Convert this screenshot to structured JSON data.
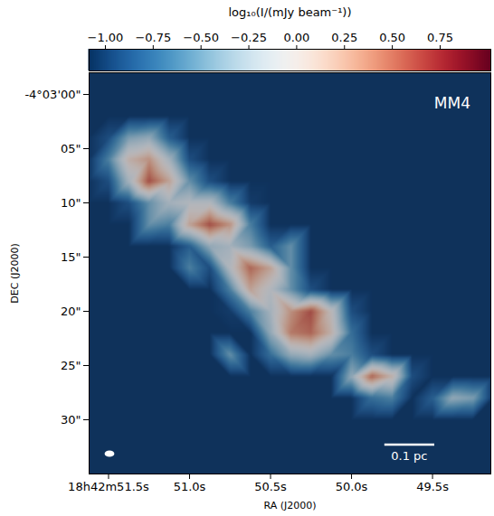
{
  "chart_data": {
    "type": "heatmap",
    "annotations": [
      "MM4"
    ],
    "xlabel": "RA (J2000)",
    "ylabel": "DEC (J2000)",
    "xlim": [
      51.62,
      49.14
    ],
    "ylim": [
      -2,
      35
    ],
    "xticks": [
      {
        "value": 51.5,
        "label": "18h42m51.5s"
      },
      {
        "value": 51.0,
        "label": "51.0s"
      },
      {
        "value": 50.5,
        "label": "50.5s"
      },
      {
        "value": 50.0,
        "label": "50.0s"
      },
      {
        "value": 49.5,
        "label": "49.5s"
      }
    ],
    "yticks": [
      {
        "value": 0,
        "label": "-4°03'00\""
      },
      {
        "value": 5,
        "label": "05\""
      },
      {
        "value": 10,
        "label": "10\""
      },
      {
        "value": 15,
        "label": "15\""
      },
      {
        "value": 20,
        "label": "20\""
      },
      {
        "value": 25,
        "label": "25\""
      },
      {
        "value": 30,
        "label": "30\""
      }
    ],
    "colorbar": {
      "label": "log₁₀(I/(mJy beam⁻¹))",
      "range": [
        -1.085,
        1.015
      ],
      "ticks": [
        {
          "value": -1,
          "label": "−1.00"
        },
        {
          "value": -0.75,
          "label": "−0.75"
        },
        {
          "value": -0.5,
          "label": "−0.50"
        },
        {
          "value": -0.25,
          "label": "−0.25"
        },
        {
          "value": 0,
          "label": "0.00"
        },
        {
          "value": 0.25,
          "label": "0.25"
        },
        {
          "value": 0.5,
          "label": "0.50"
        },
        {
          "value": 0.75,
          "label": "0.75"
        }
      ]
    },
    "scale_bar": {
      "label": "0.1 pc",
      "length_arcsec": 4.6
    },
    "beam": {
      "major_arcsec": 0.9,
      "minor_arcsec": 0.6
    },
    "x": [
      51.625,
      51.5,
      51.375,
      51.25,
      51.125,
      51.0,
      50.875,
      50.75,
      50.625,
      50.5,
      50.375,
      50.25,
      50.125,
      50.0,
      49.875,
      49.75,
      49.625,
      49.5,
      49.375,
      49.25,
      49.125
    ],
    "y": [
      -2,
      0,
      2,
      4,
      6,
      8,
      10,
      12,
      14,
      16,
      18,
      20,
      22,
      24,
      26,
      28,
      30,
      32,
      34,
      36
    ],
    "values": [
      [
        -1.05,
        -1.05,
        -1.05,
        -1.05,
        -1.05,
        -1.05,
        -1.05,
        -1.05,
        -1.05,
        -1.05,
        -1.05,
        -1.05,
        -1.05,
        -1.05,
        -1.05,
        -1.05,
        -1.05,
        -1.05,
        -1.05,
        -1.05,
        -1.05
      ],
      [
        -1.05,
        -1.05,
        -1.05,
        -1.05,
        -1.05,
        -1.05,
        -1.05,
        -1.05,
        -1.05,
        -1.05,
        -1.05,
        -1.05,
        -1.05,
        -1.05,
        -1.05,
        -1.05,
        -1.05,
        -1.05,
        -1.05,
        -1.05,
        -1.05
      ],
      [
        -1.05,
        -1.05,
        -1.05,
        -1.05,
        -1.05,
        -1.05,
        -1.05,
        -1.05,
        -1.05,
        -1.05,
        -1.05,
        -1.05,
        -1.05,
        -1.05,
        -1.05,
        -1.05,
        -1.05,
        -1.05,
        -1.05,
        -1.05,
        -1.05
      ],
      [
        -1.05,
        -0.9,
        -0.4,
        -0.3,
        -0.8,
        -1.05,
        -1.05,
        -1.05,
        -1.05,
        -1.05,
        -1.05,
        -1.05,
        -1.05,
        -1.05,
        -1.05,
        -1.05,
        -1.05,
        -1.05,
        -1.05,
        -1.05,
        -1.05
      ],
      [
        -1.05,
        -0.6,
        0.1,
        0.3,
        -0.2,
        -0.9,
        -1.05,
        -1.05,
        -1.05,
        -1.05,
        -1.05,
        -1.05,
        -1.05,
        -1.05,
        -1.05,
        -1.05,
        -1.05,
        -1.05,
        -1.05,
        -1.05,
        -1.05
      ],
      [
        -1.05,
        -0.9,
        -0.2,
        0.6,
        0.2,
        -0.5,
        -0.9,
        -1.05,
        -1.05,
        -1.05,
        -1.05,
        -1.05,
        -1.05,
        -1.05,
        -1.05,
        -1.05,
        -1.05,
        -1.05,
        -1.05,
        -1.05,
        -1.05
      ],
      [
        -1.05,
        -1.05,
        -0.9,
        -0.5,
        -0.2,
        -0.1,
        -0.1,
        -0.6,
        -1.0,
        -1.05,
        -1.05,
        -1.05,
        -1.05,
        -1.05,
        -1.05,
        -1.05,
        -1.05,
        -1.05,
        -1.05,
        -1.05,
        -1.05
      ],
      [
        -1.05,
        -1.05,
        -1.05,
        -0.5,
        -0.6,
        0.2,
        0.6,
        0.3,
        -0.6,
        -1.05,
        -1.05,
        -1.05,
        -1.05,
        -1.05,
        -1.05,
        -1.05,
        -1.05,
        -1.05,
        -1.05,
        -1.05,
        -1.05
      ],
      [
        -1.05,
        -1.05,
        -1.05,
        -1.05,
        -1.05,
        -0.8,
        -0.3,
        -0.2,
        -0.4,
        -0.8,
        -0.5,
        -1.05,
        -1.05,
        -1.05,
        -1.05,
        -1.05,
        -1.05,
        -1.05,
        -1.05,
        -1.05,
        -1.05
      ],
      [
        -1.05,
        -1.05,
        -1.05,
        -1.05,
        -1.05,
        -0.6,
        -0.9,
        -0.1,
        0.5,
        0.2,
        -0.5,
        -1.05,
        -1.05,
        -1.05,
        -1.05,
        -1.05,
        -1.05,
        -1.05,
        -1.05,
        -1.05,
        -1.05
      ],
      [
        -1.05,
        -1.05,
        -1.05,
        -1.05,
        -1.05,
        -1.05,
        -1.05,
        -0.6,
        0.2,
        -0.1,
        -0.5,
        -0.9,
        -1.05,
        -1.05,
        -1.05,
        -1.05,
        -1.05,
        -1.05,
        -1.05,
        -1.05,
        -1.05
      ],
      [
        -1.05,
        -1.05,
        -1.05,
        -1.05,
        -1.05,
        -1.05,
        -1.05,
        -1.0,
        -0.6,
        -0.2,
        0.3,
        0.6,
        0.0,
        -0.9,
        -1.05,
        -1.05,
        -1.05,
        -1.05,
        -1.05,
        -1.05,
        -1.05
      ],
      [
        -1.05,
        -1.05,
        -1.05,
        -1.05,
        -1.05,
        -1.05,
        -1.05,
        -1.05,
        -1.05,
        -0.3,
        0.4,
        0.5,
        0.1,
        -0.7,
        -1.05,
        -1.05,
        -1.05,
        -1.05,
        -1.05,
        -1.05,
        -1.05
      ],
      [
        -1.05,
        -1.05,
        -1.05,
        -1.05,
        -1.05,
        -1.05,
        -1.05,
        -0.5,
        -1.05,
        -0.7,
        -0.3,
        -0.2,
        -0.5,
        -0.6,
        -0.9,
        -1.05,
        -1.05,
        -1.05,
        -1.05,
        -1.05,
        -1.05
      ],
      [
        -1.05,
        -1.05,
        -1.05,
        -1.05,
        -1.05,
        -1.05,
        -1.05,
        -1.05,
        -1.05,
        -1.05,
        -1.05,
        -1.05,
        -1.05,
        -0.3,
        0.5,
        0.1,
        -0.9,
        -1.05,
        -1.05,
        -1.05,
        -1.05
      ],
      [
        -1.05,
        -1.05,
        -1.05,
        -1.05,
        -1.05,
        -1.05,
        -1.05,
        -1.05,
        -1.05,
        -1.05,
        -1.05,
        -1.05,
        -1.05,
        -1.05,
        -0.7,
        -0.6,
        -1.05,
        -0.8,
        -0.3,
        -0.4,
        -1.05
      ],
      [
        -1.05,
        -1.05,
        -1.05,
        -1.05,
        -1.05,
        -1.05,
        -1.05,
        -1.05,
        -1.05,
        -1.05,
        -1.05,
        -1.05,
        -1.05,
        -1.05,
        -1.05,
        -1.05,
        -1.05,
        -1.05,
        -1.05,
        -1.05,
        -1.05
      ],
      [
        -1.05,
        -1.05,
        -1.05,
        -1.05,
        -1.05,
        -1.05,
        -1.05,
        -1.05,
        -1.05,
        -1.05,
        -1.05,
        -1.05,
        -1.05,
        -1.05,
        -1.05,
        -1.05,
        -1.05,
        -1.05,
        -1.05,
        -1.05,
        -1.05
      ],
      [
        -1.05,
        -1.05,
        -1.05,
        -1.05,
        -1.05,
        -1.05,
        -1.05,
        -1.05,
        -1.05,
        -1.05,
        -1.05,
        -1.05,
        -1.05,
        -1.05,
        -1.05,
        -1.05,
        -1.05,
        -1.05,
        -1.05,
        -1.05,
        -1.05
      ],
      [
        -1.05,
        -1.05,
        -1.05,
        -1.05,
        -1.05,
        -1.05,
        -1.05,
        -1.05,
        -1.05,
        -1.05,
        -1.05,
        -1.05,
        -1.05,
        -1.05,
        -1.05,
        -1.05,
        -1.05,
        -1.05,
        -1.05,
        -1.05,
        -1.05
      ]
    ]
  }
}
